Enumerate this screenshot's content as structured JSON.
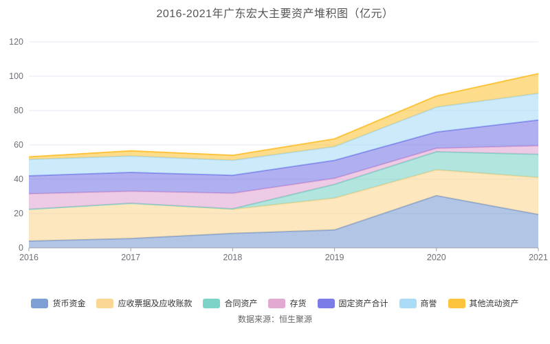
{
  "title": "2016-2021年广东宏大主要资产堆积图（亿元）",
  "source": "数据来源：恒生聚源",
  "axis": {
    "label_color": "#6E7079",
    "grid_color": "#E3E8F2",
    "axis_line_color": "#9AA1AB"
  },
  "chart_data": {
    "type": "area",
    "stacked": true,
    "title": "2016-2021年广东宏大主要资产堆积图（亿元）",
    "categories": [
      "2016",
      "2017",
      "2018",
      "2019",
      "2020",
      "2021"
    ],
    "series": [
      {
        "name": "货币资金",
        "color": "#7E9FD4",
        "values": [
          4.0,
          5.5,
          8.5,
          10.5,
          30.5,
          19.5
        ]
      },
      {
        "name": "应收票据及应收账款",
        "color": "#FAD794",
        "values": [
          18.5,
          20.5,
          14.0,
          18.5,
          15.0,
          21.5
        ]
      },
      {
        "name": "合同资产",
        "color": "#7ED3C8",
        "values": [
          0.0,
          0.0,
          0.3,
          8.0,
          10.5,
          13.5
        ]
      },
      {
        "name": "存货",
        "color": "#E2A9D2",
        "values": [
          9.0,
          7.0,
          9.0,
          3.5,
          2.0,
          5.0
        ]
      },
      {
        "name": "固定资产合计",
        "color": "#7C7CE8",
        "values": [
          10.5,
          11.0,
          10.5,
          10.5,
          9.5,
          15.0
        ]
      },
      {
        "name": "商誉",
        "color": "#AADCF7",
        "values": [
          9.5,
          9.5,
          8.7,
          8.0,
          14.5,
          15.5
        ]
      },
      {
        "name": "其他流动资产",
        "color": "#FCC43D",
        "values": [
          1.5,
          3.0,
          2.9,
          4.5,
          6.5,
          11.5
        ]
      }
    ],
    "xlabel": "",
    "ylabel": "",
    "ylim": [
      0,
      120
    ],
    "y_ticks": [
      0,
      20,
      40,
      60,
      80,
      100,
      120
    ],
    "grid": true,
    "legend_position": "bottom"
  }
}
